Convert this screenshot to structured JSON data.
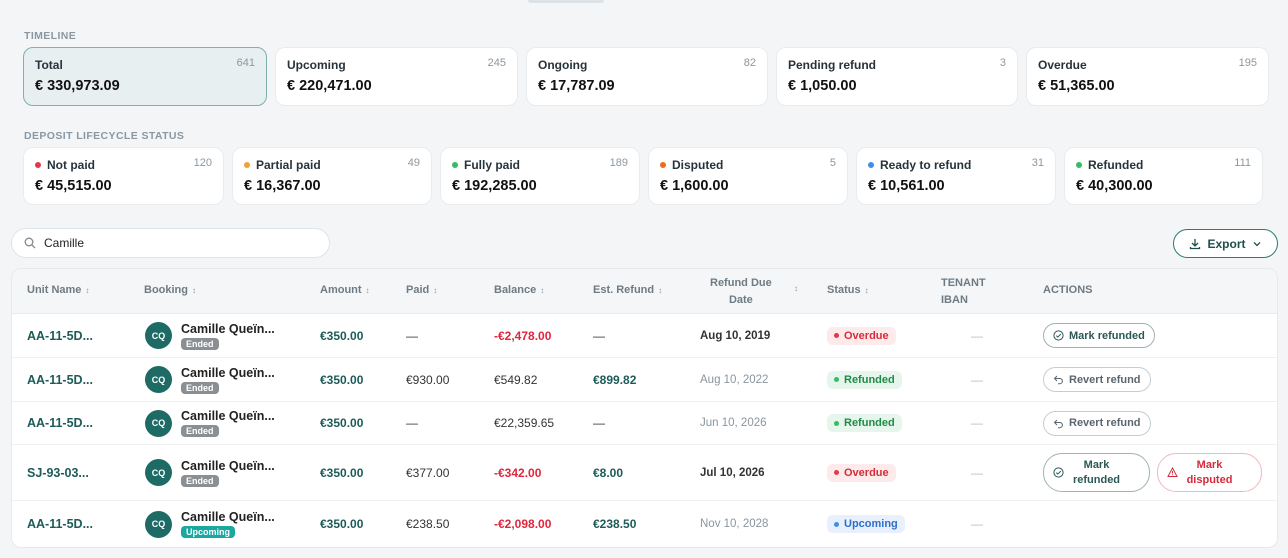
{
  "timeline": {
    "title": "TIMELINE",
    "cards": [
      {
        "label": "Total",
        "count": "641",
        "amount": "€ 330,973.09"
      },
      {
        "label": "Upcoming",
        "count": "245",
        "amount": "€ 220,471.00"
      },
      {
        "label": "Ongoing",
        "count": "82",
        "amount": "€ 17,787.09"
      },
      {
        "label": "Pending refund",
        "count": "3",
        "amount": "€ 1,050.00"
      },
      {
        "label": "Overdue",
        "count": "195",
        "amount": "€ 51,365.00"
      }
    ]
  },
  "lifecycle": {
    "title": "DEPOSIT LIFECYCLE STATUS",
    "cards": [
      {
        "label": "Not paid",
        "count": "120",
        "amount": "€ 45,515.00",
        "color": "#e5364a"
      },
      {
        "label": "Partial paid",
        "count": "49",
        "amount": "€ 16,367.00",
        "color": "#f0a233"
      },
      {
        "label": "Fully paid",
        "count": "189",
        "amount": "€ 192,285.00",
        "color": "#2fbf64"
      },
      {
        "label": "Disputed",
        "count": "5",
        "amount": "€ 1,600.00",
        "color": "#f26a1b"
      },
      {
        "label": "Ready to refund",
        "count": "31",
        "amount": "€ 10,561.00",
        "color": "#3d8ef0"
      },
      {
        "label": "Refunded",
        "count": "111",
        "amount": "€ 40,300.00",
        "color": "#2fbf64"
      }
    ]
  },
  "search": {
    "value": "Camille",
    "icon": "search-icon"
  },
  "export": {
    "label": "Export"
  },
  "table": {
    "headers": {
      "unit": "Unit Name",
      "booking": "Booking",
      "amount": "Amount",
      "paid": "Paid",
      "balance": "Balance",
      "est_refund": "Est. Refund",
      "refund_due_1": "Refund Due",
      "refund_due_2": "Date",
      "status": "Status",
      "iban_1": "TENANT",
      "iban_2": "IBAN",
      "actions": "ACTIONS"
    },
    "rows": [
      {
        "unit": "AA-11-5D...",
        "initials": "CQ",
        "name": "Camille Queïn...",
        "tag": "Ended",
        "amount": "€350.00",
        "paid": "—",
        "balance": "-€2,478.00",
        "est_refund": "—",
        "due": "Aug 10, 2019",
        "status": "Overdue",
        "iban": "—",
        "action1": "Mark refunded"
      },
      {
        "unit": "AA-11-5D...",
        "initials": "CQ",
        "name": "Camille Queïn...",
        "tag": "Ended",
        "amount": "€350.00",
        "paid": "€930.00",
        "balance": "€549.82",
        "est_refund": "€899.82",
        "due": "Aug 10, 2022",
        "status": "Refunded",
        "iban": "—",
        "action1": "Revert refund"
      },
      {
        "unit": "AA-11-5D...",
        "initials": "CQ",
        "name": "Camille Queïn...",
        "tag": "Ended",
        "amount": "€350.00",
        "paid": "—",
        "balance": "€22,359.65",
        "est_refund": "—",
        "due": "Jun 10, 2026",
        "status": "Refunded",
        "iban": "—",
        "action1": "Revert refund"
      },
      {
        "unit": "SJ-93-03...",
        "initials": "CQ",
        "name": "Camille Queïn...",
        "tag": "Ended",
        "amount": "€350.00",
        "paid": "€377.00",
        "balance": "-€342.00",
        "est_refund": "€8.00",
        "due": "Jul 10, 2026",
        "status": "Overdue",
        "iban": "—",
        "action1": "Mark refunded",
        "action2": "Mark disputed"
      },
      {
        "unit": "AA-11-5D...",
        "initials": "CQ",
        "name": "Camille Queïn...",
        "tag": "Upcoming",
        "amount": "€350.00",
        "paid": "€238.50",
        "balance": "-€2,098.00",
        "est_refund": "€238.50",
        "due": "Nov 10, 2028",
        "status": "Upcoming",
        "iban": "—"
      }
    ]
  }
}
